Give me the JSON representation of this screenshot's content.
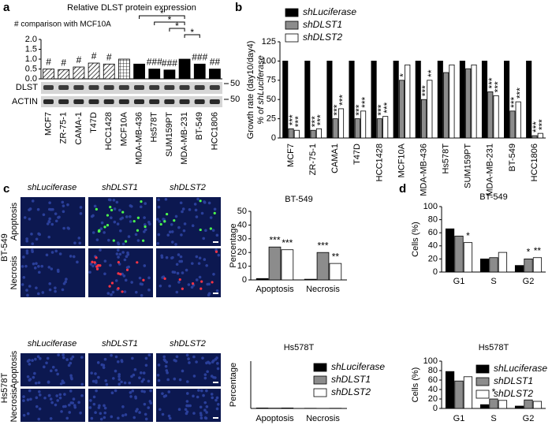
{
  "panels": [
    "a",
    "b",
    "c",
    "d"
  ],
  "blot": {
    "bands": [
      "DLST",
      "ACTIN"
    ],
    "marker": "50"
  },
  "images": [
    {
      "cell_line": "BT-549",
      "columns": [
        "shLuciferase",
        "shDLST1",
        "shDLST2"
      ],
      "rows": [
        "Apoptosis",
        "Necrosis"
      ]
    },
    {
      "cell_line": "Hs578T",
      "columns": [
        "shLuciferase",
        "shDLST1",
        "shDLST2"
      ],
      "rows": [
        "Apoptosis",
        "Necrosis"
      ]
    }
  ],
  "chart_data": [
    {
      "type": "bar",
      "title": "Relative DLST protein expression",
      "subtitle": "# comparison with MCF10A",
      "categories": [
        "MCF7",
        "ZR-75-1",
        "CAMA-1",
        "T47D",
        "HCC1428",
        "MCF10A",
        "MDA-MB-436",
        "Hs578T",
        "SUM159PT",
        "MDA-MB-231",
        "BT-549",
        "HCC1806"
      ],
      "values": [
        0.5,
        0.47,
        0.6,
        0.8,
        0.75,
        1.0,
        0.75,
        0.5,
        0.45,
        1.0,
        0.75,
        0.5
      ],
      "annotations": [
        "#",
        "#",
        "#",
        "#",
        "#",
        null,
        null,
        "###",
        "###",
        null,
        "###",
        "##"
      ],
      "fills": [
        "hatch",
        "hatch",
        "hatch",
        "hatch",
        "hatch",
        "grid",
        "black",
        "black",
        "black",
        "black",
        "black",
        "black"
      ],
      "label_colors": [
        "#000000",
        "#000000",
        "#000000",
        "#000000",
        "#000000",
        "#2233cc",
        "#000000",
        "#000000",
        "#000000",
        "#000000",
        "#000000",
        "#000000"
      ],
      "comparisons": [
        {
          "groups": [
            "MDA-MB-436",
            "MDA-MB-231"
          ],
          "label": "*"
        },
        {
          "groups": [
            "Hs578T",
            "MDA-MB-231"
          ],
          "label": "*"
        },
        {
          "groups": [
            "SUM159PT",
            "MDA-MB-231"
          ],
          "label": "*"
        },
        {
          "groups": [
            "MDA-MB-231",
            "BT-549"
          ],
          "label": "*"
        }
      ],
      "ylim": [
        0,
        2.0
      ],
      "yticks": [
        {
          "value": 0,
          "label": "0.0"
        },
        0.5,
        {
          "value": 1,
          "label": "1.0"
        },
        1.5,
        {
          "value": 2,
          "label": "2.0"
        }
      ]
    },
    {
      "type": "bar",
      "ylabel": [
        "Growth rate (day10/day4)",
        "% of shLuciferase"
      ],
      "categories": [
        "MCF7",
        "ZR-75-1",
        "CAMA1",
        "T47D",
        "HCC1428",
        "MCF10A",
        "MDA-MB-436",
        "Hs578T",
        "SUM159PT",
        "MDA-MB-231",
        "BT-549",
        "HCC1806"
      ],
      "label_colors": [
        "#000000",
        "#000000",
        "#000000",
        "#000000",
        "#000000",
        "#2233cc",
        "#000000",
        "#000000",
        "#000000",
        "#000000",
        "#000000",
        "#000000"
      ],
      "series": [
        {
          "name": "shLuciferase",
          "color": "#000000",
          "values": [
            100,
            100,
            100,
            100,
            100,
            100,
            100,
            100,
            100,
            100,
            100,
            100
          ]
        },
        {
          "name": "shDLST1",
          "color": "#8c8c8c",
          "values": [
            12,
            10,
            25,
            25,
            25,
            75,
            50,
            85,
            90,
            60,
            35,
            3
          ],
          "significance": [
            "***",
            "***",
            "***",
            "***",
            "***",
            "*",
            "***",
            null,
            null,
            "***",
            "***",
            "***"
          ]
        },
        {
          "name": "shDLST2",
          "color": "#ffffff",
          "values": [
            10,
            12,
            38,
            35,
            28,
            95,
            75,
            95,
            95,
            55,
            47,
            6
          ],
          "significance": [
            "***",
            "***",
            "***",
            "***",
            "***",
            null,
            "**",
            null,
            null,
            "***",
            "***",
            "***"
          ]
        }
      ],
      "label_orientation": "vertical",
      "legend": true,
      "ylim": [
        0,
        125
      ],
      "yticks": [
        0,
        25,
        50,
        75,
        100,
        125
      ]
    },
    {
      "type": "bar",
      "title": "BT-549",
      "ylabel": "Percentage",
      "categories": [
        "Apoptosis",
        "Necrosis"
      ],
      "series": [
        {
          "name": "shLuciferase",
          "color": "#000000",
          "values": [
            1,
            0.5
          ]
        },
        {
          "name": "shDLST1",
          "color": "#8c8c8c",
          "values": [
            24,
            20
          ],
          "significance": [
            "***",
            "***"
          ]
        },
        {
          "name": "shDLST2",
          "color": "#ffffff",
          "values": [
            22,
            12
          ],
          "significance": [
            "***",
            "**"
          ]
        }
      ],
      "ylim": [
        0,
        50
      ],
      "yticks": [
        0,
        10,
        20,
        30,
        40,
        50
      ]
    },
    {
      "type": "bar",
      "title": "Hs578T",
      "ylabel": "Percentage",
      "categories": [
        "Apoptosis",
        "Necrosis"
      ],
      "series": [
        {
          "name": "shLuciferase",
          "color": "#000000",
          "values": [
            0.5,
            0.2
          ]
        },
        {
          "name": "shDLST1",
          "color": "#8c8c8c",
          "values": [
            0.3,
            0.1
          ]
        },
        {
          "name": "shDLST2",
          "color": "#ffffff",
          "values": [
            0.5,
            0.2
          ]
        }
      ],
      "legend": true,
      "ylim": [
        0,
        50
      ]
    },
    {
      "type": "bar",
      "title": "BT-549",
      "ylabel": "Cells (%)",
      "categories": [
        "G1",
        "S",
        "G2"
      ],
      "series": [
        {
          "name": "shLuciferase",
          "color": "#000000",
          "values": [
            66,
            20,
            10
          ]
        },
        {
          "name": "shDLST1",
          "color": "#8c8c8c",
          "values": [
            55,
            22,
            20
          ],
          "significance": [
            null,
            null,
            "*"
          ]
        },
        {
          "name": "shDLST2",
          "color": "#ffffff",
          "values": [
            45,
            30,
            22
          ],
          "significance": [
            "*",
            null,
            "**"
          ]
        }
      ],
      "ylim": [
        0,
        100
      ],
      "yticks": [
        0,
        20,
        40,
        60,
        80,
        100
      ]
    },
    {
      "type": "bar",
      "title": "Hs578T",
      "ylabel": "Cells (%)",
      "categories": [
        "G1",
        "S",
        "G2"
      ],
      "series": [
        {
          "name": "shLuciferase",
          "color": "#000000",
          "values": [
            78,
            8,
            5
          ]
        },
        {
          "name": "shDLST1",
          "color": "#8c8c8c",
          "values": [
            58,
            20,
            18
          ],
          "significance": [
            null,
            "*",
            null
          ]
        },
        {
          "name": "shDLST2",
          "color": "#ffffff",
          "values": [
            67,
            17,
            15
          ]
        }
      ],
      "legend": true,
      "ylim": [
        0,
        100
      ],
      "yticks": [
        0,
        20,
        40,
        60,
        80,
        100
      ]
    }
  ]
}
